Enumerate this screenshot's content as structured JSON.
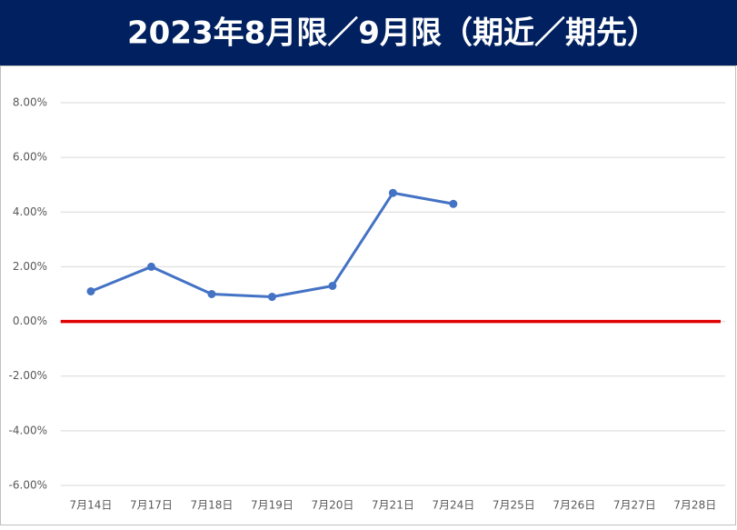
{
  "chart_data": {
    "type": "line",
    "title": "2023年8月限／9月限（期近／期先）",
    "categories": [
      "7月14日",
      "7月17日",
      "7月18日",
      "7月19日",
      "7月20日",
      "7月21日",
      "7月24日",
      "7月25日",
      "7月26日",
      "7月27日",
      "7月28日"
    ],
    "series": [
      {
        "color": "#4472c4",
        "values": [
          1.1,
          2.0,
          1.0,
          0.9,
          1.3,
          4.7,
          4.3,
          null,
          null,
          null,
          null
        ]
      }
    ],
    "ylim": [
      -6,
      8
    ],
    "yticks": [
      {
        "value": -6,
        "label": "-6.00%"
      },
      {
        "value": -4,
        "label": "-4.00%"
      },
      {
        "value": -2,
        "label": "-2.00%"
      },
      {
        "value": 0,
        "label": "0.00%"
      },
      {
        "value": 2,
        "label": "2.00%"
      },
      {
        "value": 4,
        "label": "4.00%"
      },
      {
        "value": 6,
        "label": "6.00%"
      },
      {
        "value": 8,
        "label": "8.00%"
      }
    ],
    "grid": true,
    "zero_line_color": "#e00000",
    "title_background": "#002060"
  }
}
